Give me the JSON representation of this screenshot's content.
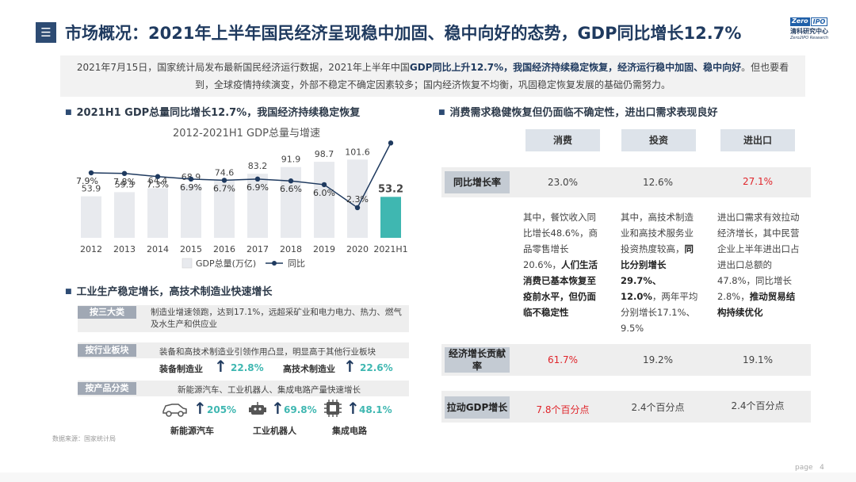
{
  "header": {
    "menu_icon": "menu-icon",
    "title": "市场概况：2021年上半年国民经济呈现稳中加固、稳中向好的态势，GDP同比增长12.7%",
    "logo": {
      "zero": "Zero",
      "ipo": "IPO",
      "cn": "清科研究中心",
      "en": "Zero2IPO Research"
    }
  },
  "intro": {
    "p1": "2021年7月15日，国家统计局发布最新国民经济运行数据，2021年上半年中国",
    "b1": "GDP同比上升12.7%，我国经济持续稳定恢复，经济运行稳中加固、稳中向好",
    "p2": "。但也要看到，全球疫情持续演变，外部不稳定不确定因素较多；国内经济恢复不均衡，巩固稳定恢复发展的基础仍需努力。"
  },
  "section1": {
    "heading": "2021H1 GDP总量同比增长12.7%，我国经济持续稳定恢复"
  },
  "section2": {
    "heading": "消费需求稳健恢复但仍面临不确定性，进出口需求表现良好"
  },
  "section3": {
    "heading": "工业生产稳定增长，高技术制造业快速增长"
  },
  "chart_data": {
    "type": "bar",
    "title": "2012-2021H1 GDP总量与增速",
    "categories": [
      "2012",
      "2013",
      "2014",
      "2015",
      "2016",
      "2017",
      "2018",
      "2019",
      "2020",
      "2021H1"
    ],
    "series": [
      {
        "name": "GDP总量(万亿)",
        "type": "bar",
        "values": [
          53.9,
          59.3,
          64.4,
          68.9,
          74.6,
          83.2,
          91.9,
          98.7,
          101.6,
          53.2
        ],
        "labels": [
          "53.9",
          "59.3",
          "64.4",
          "68.9",
          "74.6",
          "83.2",
          "91.9",
          "98.7",
          "101.6",
          "53.2"
        ],
        "color": "#e8eaee",
        "highlight_color": "#3fb7b1"
      },
      {
        "name": "同比",
        "type": "line",
        "values": [
          7.9,
          7.8,
          7.3,
          6.9,
          6.7,
          6.9,
          6.6,
          6.0,
          2.3,
          12.7
        ],
        "labels": [
          "7.9%",
          "7.8%",
          "7.3%",
          "6.9%",
          "6.7%",
          "6.9%",
          "6.6%",
          "6.0%",
          "2.3%",
          "12.7%"
        ],
        "color": "#1f3a5f"
      }
    ],
    "legend_position": "bottom",
    "grid": false
  },
  "industry": {
    "rows": [
      {
        "tag": "按三大类",
        "text": "制造业增速领跑，达到17.1%，远超采矿业和电力电力、热力、燃气及水生产和供应业"
      },
      {
        "tag": "按行业板块",
        "text": "装备和高技术制造业引领作用凸显，明显高于其他行业板块"
      },
      {
        "tag": "按产品分类",
        "text": "新能源汽车、工业机器人、集成电路产量快速增长"
      }
    ],
    "sector_stats": [
      {
        "label": "装备制造业",
        "value": "22.8%"
      },
      {
        "label": "高技术制造业",
        "value": "22.6%"
      }
    ],
    "product_stats": [
      {
        "icon": "car-icon",
        "label": "新能源汽车",
        "value": "205%"
      },
      {
        "icon": "robot-icon",
        "label": "工业机器人",
        "value": "69.8%"
      },
      {
        "icon": "chip-icon",
        "label": "集成电路",
        "value": "48.1%"
      }
    ],
    "source": "数据来源：国家统计局"
  },
  "table": {
    "headers": [
      "消费",
      "投资",
      "进出口"
    ],
    "rows": [
      {
        "label": "同比增长率",
        "values": [
          "23.0%",
          "12.6%",
          "27.1%"
        ],
        "red_index": 2
      },
      {
        "label": "经济增长贡献率",
        "values": [
          "61.7%",
          "19.2%",
          "19.1%"
        ],
        "red_index": 0
      },
      {
        "label": "拉动GDP增长",
        "values": [
          "7.8个百分点",
          "2.4个百分点",
          "2.4个百分点"
        ],
        "red_index": 0
      }
    ],
    "descriptions": [
      {
        "pre": "其中，餐饮收入同比增长48.6%，商品零售增长20.6%，",
        "bold": "人们生活消费已基本恢复至疫前水平，但仍面临不稳定性",
        "post": ""
      },
      {
        "pre": "其中，高技术制造业和高技术服务业投资热度较高，",
        "bold": "同比分别增长29.7%、12.0%",
        "post": "，两年平均分别增长17.1%、9.5%"
      },
      {
        "pre": "进出口需求有效拉动经济增长，其中民营企业上半年进出口占进出口总额的47.8%，同比增长2.8%，",
        "bold": "推动贸易结构持续优化",
        "post": ""
      }
    ]
  },
  "footer": {
    "page_label": "page",
    "page_number": "4"
  }
}
